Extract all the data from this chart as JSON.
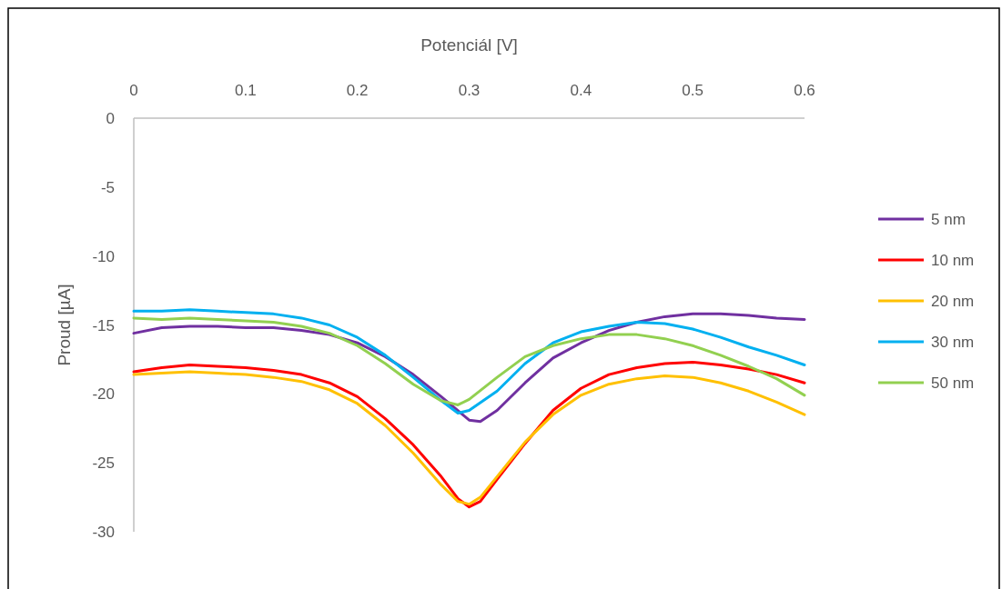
{
  "chart_data": {
    "type": "line",
    "xlabel": "Potenciál [V]",
    "ylabel": "Proud [µA]",
    "xlim": [
      0,
      0.6
    ],
    "xticks": [
      0,
      0.1,
      0.2,
      0.3,
      0.4,
      0.5,
      0.6
    ],
    "ylim": [
      -30,
      0
    ],
    "yticks": [
      0,
      -5,
      -10,
      -15,
      -20,
      -25,
      -30
    ],
    "grid": false,
    "legend": "right",
    "marker": "none",
    "line_style": "solid",
    "series": [
      {
        "name": "5 nm",
        "color": "#7030a0",
        "x": [
          0,
          0.025,
          0.05,
          0.075,
          0.1,
          0.125,
          0.15,
          0.175,
          0.2,
          0.225,
          0.25,
          0.275,
          0.3,
          0.31,
          0.325,
          0.35,
          0.375,
          0.4,
          0.425,
          0.45,
          0.475,
          0.5,
          0.525,
          0.55,
          0.575,
          0.6
        ],
        "values": [
          -15.6,
          -15.2,
          -15.1,
          -15.1,
          -15.2,
          -15.2,
          -15.4,
          -15.7,
          -16.3,
          -17.3,
          -18.6,
          -20.2,
          -21.9,
          -22.0,
          -21.2,
          -19.2,
          -17.4,
          -16.3,
          -15.4,
          -14.8,
          -14.4,
          -14.2,
          -14.2,
          -14.3,
          -14.5,
          -14.6
        ]
      },
      {
        "name": "10 nm",
        "color": "#ff0000",
        "x": [
          0,
          0.025,
          0.05,
          0.075,
          0.1,
          0.125,
          0.15,
          0.175,
          0.2,
          0.225,
          0.25,
          0.275,
          0.29,
          0.3,
          0.31,
          0.325,
          0.35,
          0.375,
          0.4,
          0.425,
          0.45,
          0.475,
          0.5,
          0.525,
          0.55,
          0.575,
          0.6
        ],
        "values": [
          -18.4,
          -18.1,
          -17.9,
          -18.0,
          -18.1,
          -18.3,
          -18.6,
          -19.2,
          -20.2,
          -21.8,
          -23.7,
          -26.0,
          -27.6,
          -28.2,
          -27.8,
          -26.2,
          -23.6,
          -21.2,
          -19.6,
          -18.6,
          -18.1,
          -17.8,
          -17.7,
          -17.9,
          -18.2,
          -18.6,
          -19.2
        ]
      },
      {
        "name": "20 nm",
        "color": "#ffc000",
        "x": [
          0,
          0.025,
          0.05,
          0.075,
          0.1,
          0.125,
          0.15,
          0.175,
          0.2,
          0.225,
          0.25,
          0.275,
          0.29,
          0.3,
          0.31,
          0.325,
          0.35,
          0.375,
          0.4,
          0.425,
          0.45,
          0.475,
          0.5,
          0.525,
          0.55,
          0.575,
          0.6
        ],
        "values": [
          -18.6,
          -18.5,
          -18.4,
          -18.5,
          -18.6,
          -18.8,
          -19.1,
          -19.7,
          -20.7,
          -22.3,
          -24.3,
          -26.6,
          -27.8,
          -28.0,
          -27.5,
          -26.0,
          -23.5,
          -21.5,
          -20.1,
          -19.3,
          -18.9,
          -18.7,
          -18.8,
          -19.2,
          -19.8,
          -20.6,
          -21.5
        ]
      },
      {
        "name": "30 nm",
        "color": "#00b0f0",
        "x": [
          0,
          0.025,
          0.05,
          0.075,
          0.1,
          0.125,
          0.15,
          0.175,
          0.2,
          0.225,
          0.25,
          0.275,
          0.29,
          0.3,
          0.325,
          0.35,
          0.375,
          0.4,
          0.425,
          0.45,
          0.475,
          0.5,
          0.525,
          0.55,
          0.575,
          0.6
        ],
        "values": [
          -14.0,
          -14.0,
          -13.9,
          -14.0,
          -14.1,
          -14.2,
          -14.5,
          -15.0,
          -15.9,
          -17.2,
          -18.8,
          -20.5,
          -21.4,
          -21.2,
          -19.8,
          -17.8,
          -16.3,
          -15.5,
          -15.1,
          -14.8,
          -14.9,
          -15.3,
          -15.9,
          -16.6,
          -17.2,
          -17.9
        ]
      },
      {
        "name": "50 nm",
        "color": "#92d050",
        "x": [
          0,
          0.025,
          0.05,
          0.075,
          0.1,
          0.125,
          0.15,
          0.175,
          0.2,
          0.225,
          0.25,
          0.275,
          0.29,
          0.3,
          0.325,
          0.35,
          0.375,
          0.4,
          0.425,
          0.45,
          0.475,
          0.5,
          0.525,
          0.55,
          0.575,
          0.6
        ],
        "values": [
          -14.5,
          -14.6,
          -14.5,
          -14.6,
          -14.7,
          -14.8,
          -15.1,
          -15.6,
          -16.5,
          -17.8,
          -19.3,
          -20.5,
          -20.8,
          -20.4,
          -18.8,
          -17.3,
          -16.5,
          -16.0,
          -15.7,
          -15.7,
          -16.0,
          -16.5,
          -17.2,
          -18.0,
          -18.9,
          -20.1
        ]
      }
    ]
  }
}
